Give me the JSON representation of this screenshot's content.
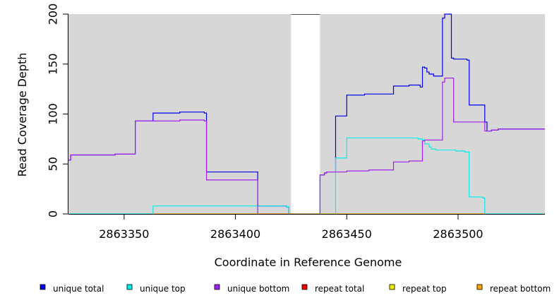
{
  "chart_data": {
    "type": "line",
    "title": "",
    "xlabel": "Coordinate in Reference Genome",
    "ylabel": "Read Coverage Depth",
    "xlim": [
      2863325,
      2863539
    ],
    "ylim": [
      0,
      200
    ],
    "x_ticks": [
      2863350,
      2863400,
      2863450,
      2863500
    ],
    "y_ticks": [
      0,
      50,
      100,
      150,
      200
    ],
    "grid": false,
    "background_color": "#d7d7d7",
    "gaps": [
      [
        2863425,
        2863438
      ]
    ],
    "legend_position": "bottom",
    "legend": [
      {
        "name": "unique total",
        "color": "#0000ee"
      },
      {
        "name": "unique top",
        "color": "#00eeee"
      },
      {
        "name": "unique bottom",
        "color": "#a020f0"
      },
      {
        "name": "repeat total",
        "color": "#ee0000"
      },
      {
        "name": "repeat top",
        "color": "#eeee00"
      },
      {
        "name": "repeat bottom",
        "color": "#ffa500"
      }
    ],
    "series": [
      {
        "name": "unique total",
        "color": "#0000ee",
        "points": [
          [
            2863325,
            54
          ],
          [
            2863326,
            54
          ],
          [
            2863326,
            59
          ],
          [
            2863346,
            59
          ],
          [
            2863346,
            60
          ],
          [
            2863355,
            60
          ],
          [
            2863355,
            93
          ],
          [
            2863363,
            93
          ],
          [
            2863363,
            101
          ],
          [
            2863375,
            101
          ],
          [
            2863375,
            102
          ],
          [
            2863386,
            102
          ],
          [
            2863386,
            101
          ],
          [
            2863387,
            101
          ],
          [
            2863387,
            42
          ],
          [
            2863410,
            42
          ],
          [
            2863410,
            8
          ],
          [
            2863423,
            8
          ],
          [
            2863423,
            7
          ],
          [
            2863424,
            7
          ],
          [
            2863424,
            0
          ],
          [
            2863438,
            0
          ],
          [
            2863438,
            39
          ],
          [
            2863440,
            39
          ],
          [
            2863440,
            41
          ],
          [
            2863441,
            41
          ],
          [
            2863441,
            42
          ],
          [
            2863445,
            42
          ],
          [
            2863445,
            98
          ],
          [
            2863450,
            98
          ],
          [
            2863450,
            119
          ],
          [
            2863458,
            119
          ],
          [
            2863458,
            120
          ],
          [
            2863471,
            120
          ],
          [
            2863471,
            128
          ],
          [
            2863478,
            128
          ],
          [
            2863478,
            129
          ],
          [
            2863483,
            129
          ],
          [
            2863483,
            127
          ],
          [
            2863484,
            127
          ],
          [
            2863484,
            147
          ],
          [
            2863485,
            147
          ],
          [
            2863485,
            146
          ],
          [
            2863486,
            146
          ],
          [
            2863486,
            142
          ],
          [
            2863487,
            142
          ],
          [
            2863487,
            140
          ],
          [
            2863489,
            140
          ],
          [
            2863489,
            138
          ],
          [
            2863493,
            138
          ],
          [
            2863493,
            196
          ],
          [
            2863494,
            196
          ],
          [
            2863494,
            200
          ],
          [
            2863497,
            200
          ],
          [
            2863497,
            156
          ],
          [
            2863498,
            156
          ],
          [
            2863498,
            155
          ],
          [
            2863504,
            155
          ],
          [
            2863504,
            154
          ],
          [
            2863505,
            154
          ],
          [
            2863505,
            109
          ],
          [
            2863512,
            109
          ],
          [
            2863512,
            92
          ],
          [
            2863513,
            92
          ],
          [
            2863513,
            83
          ],
          [
            2863515,
            83
          ],
          [
            2863515,
            84
          ],
          [
            2863518,
            84
          ],
          [
            2863518,
            85
          ],
          [
            2863539,
            85
          ]
        ]
      },
      {
        "name": "unique top",
        "color": "#00eeee",
        "points": [
          [
            2863325,
            0
          ],
          [
            2863363,
            0
          ],
          [
            2863363,
            8
          ],
          [
            2863423,
            8
          ],
          [
            2863423,
            7
          ],
          [
            2863424,
            7
          ],
          [
            2863424,
            0
          ],
          [
            2863445,
            0
          ],
          [
            2863445,
            56
          ],
          [
            2863450,
            56
          ],
          [
            2863450,
            76
          ],
          [
            2863482,
            76
          ],
          [
            2863482,
            75
          ],
          [
            2863484,
            75
          ],
          [
            2863484,
            74
          ],
          [
            2863485,
            74
          ],
          [
            2863485,
            70
          ],
          [
            2863487,
            70
          ],
          [
            2863487,
            67
          ],
          [
            2863488,
            67
          ],
          [
            2863488,
            65
          ],
          [
            2863490,
            65
          ],
          [
            2863490,
            64
          ],
          [
            2863499,
            64
          ],
          [
            2863499,
            63
          ],
          [
            2863503,
            63
          ],
          [
            2863503,
            62
          ],
          [
            2863505,
            62
          ],
          [
            2863505,
            17
          ],
          [
            2863511,
            17
          ],
          [
            2863511,
            16
          ],
          [
            2863512,
            16
          ],
          [
            2863512,
            0
          ],
          [
            2863539,
            0
          ]
        ]
      },
      {
        "name": "unique bottom",
        "color": "#a020f0",
        "points": [
          [
            2863325,
            54
          ],
          [
            2863326,
            54
          ],
          [
            2863326,
            59
          ],
          [
            2863346,
            59
          ],
          [
            2863346,
            60
          ],
          [
            2863355,
            60
          ],
          [
            2863355,
            93
          ],
          [
            2863375,
            93
          ],
          [
            2863375,
            94
          ],
          [
            2863386,
            94
          ],
          [
            2863386,
            93
          ],
          [
            2863387,
            93
          ],
          [
            2863387,
            34
          ],
          [
            2863410,
            34
          ],
          [
            2863410,
            0
          ],
          [
            2863438,
            0
          ],
          [
            2863438,
            39
          ],
          [
            2863440,
            39
          ],
          [
            2863440,
            41
          ],
          [
            2863441,
            41
          ],
          [
            2863441,
            42
          ],
          [
            2863450,
            42
          ],
          [
            2863450,
            43
          ],
          [
            2863460,
            43
          ],
          [
            2863460,
            44
          ],
          [
            2863471,
            44
          ],
          [
            2863471,
            52
          ],
          [
            2863478,
            52
          ],
          [
            2863478,
            53
          ],
          [
            2863484,
            53
          ],
          [
            2863484,
            73
          ],
          [
            2863485,
            73
          ],
          [
            2863485,
            74
          ],
          [
            2863493,
            74
          ],
          [
            2863493,
            132
          ],
          [
            2863494,
            132
          ],
          [
            2863494,
            136
          ],
          [
            2863498,
            136
          ],
          [
            2863498,
            92
          ],
          [
            2863512,
            92
          ],
          [
            2863512,
            83
          ],
          [
            2863515,
            83
          ],
          [
            2863515,
            84
          ],
          [
            2863518,
            84
          ],
          [
            2863518,
            85
          ],
          [
            2863539,
            85
          ]
        ]
      },
      {
        "name": "repeat bottom",
        "color": "#ffa500",
        "points": [
          [
            2863363,
            0
          ],
          [
            2863424,
            0
          ],
          [
            2863424,
            0
          ],
          [
            2863445,
            0
          ],
          [
            2863445,
            0
          ],
          [
            2863512,
            0
          ]
        ]
      }
    ]
  }
}
